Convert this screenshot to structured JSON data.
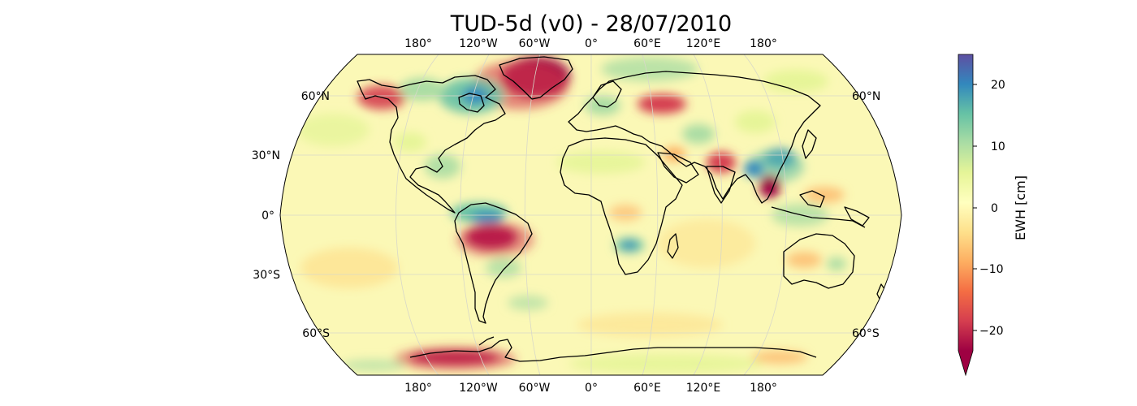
{
  "title": "TUD-5d (v0) - 28/07/2010",
  "lon_labels": [
    "180°",
    "120°W",
    "60°W",
    "0°",
    "60°E",
    "120°E",
    "180°"
  ],
  "lat_labels_left": [
    "60°N",
    "30°N",
    "0°",
    "30°S",
    "60°S"
  ],
  "lat_labels_right": [
    "60°N",
    "60°S"
  ],
  "colorbar": {
    "label": "EWH [cm]",
    "ticks": [
      "20",
      "10",
      "0",
      "−10",
      "−20"
    ],
    "range": [
      -25,
      25
    ],
    "extend": "min",
    "colors": [
      "#9e0142",
      "#d53e4f",
      "#f46d43",
      "#fdae61",
      "#fee08b",
      "#ffffbf",
      "#e6f598",
      "#abdda4",
      "#66c2a5",
      "#3288bd",
      "#5e4fa2"
    ]
  },
  "map": {
    "projection": "Robinson",
    "ocean_color": "#fbf8b6",
    "graticule": true
  }
}
